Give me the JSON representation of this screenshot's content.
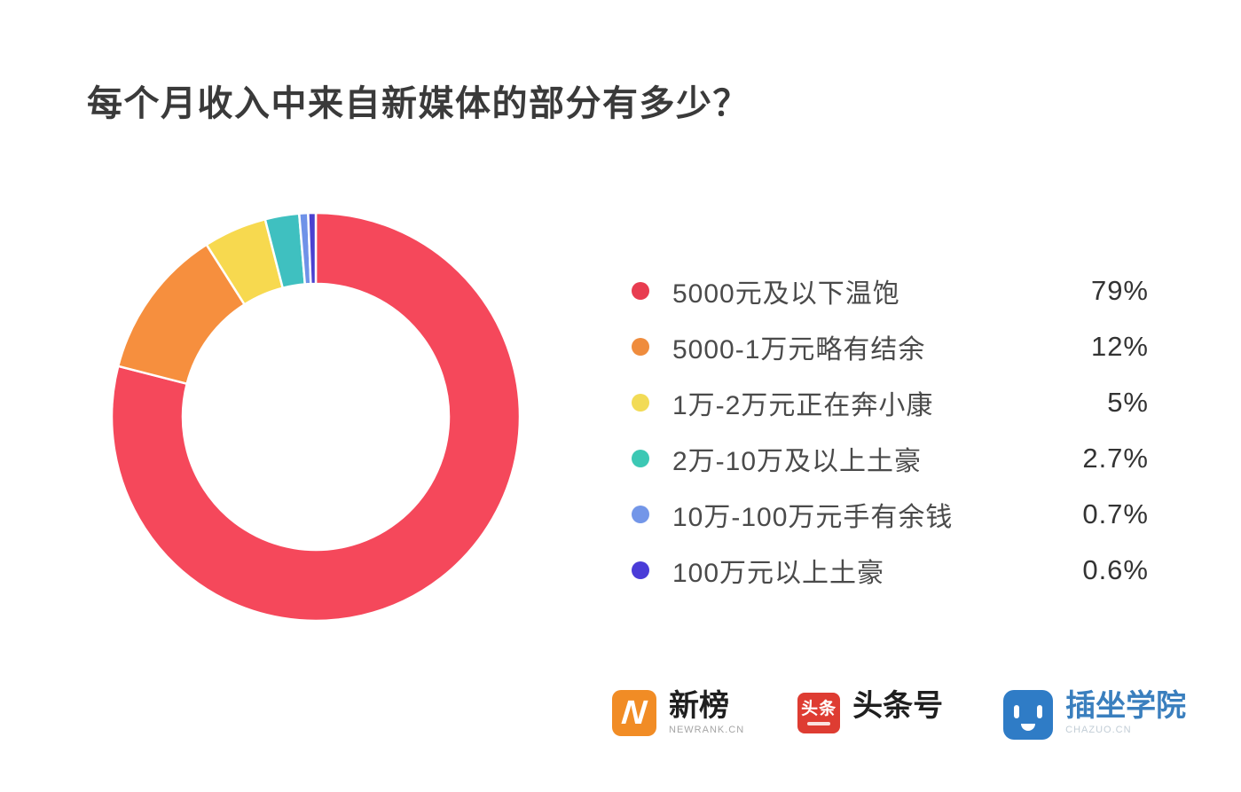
{
  "title": "每个月收入中来自新媒体的部分有多少？",
  "chart_data": {
    "type": "pie",
    "subtype": "donut",
    "title": "每个月收入中来自新媒体的部分有多少？",
    "legend_position": "right",
    "start_angle_deg": 0,
    "direction": "clockwise",
    "categories": [
      "5000元及以下温饱",
      "5000-1万元略有结余",
      "1万-2万元正在奔小康",
      "2万-10万及以上土豪",
      "10万-100万元手有余钱",
      "100万元以上土豪"
    ],
    "values": [
      79,
      12,
      5,
      2.7,
      0.7,
      0.6
    ],
    "unit": "%",
    "segments": [
      {
        "label": "5000元及以下温饱",
        "percent": 79,
        "value_label": "79%",
        "color": "#f5485b"
      },
      {
        "label": "5000-1万元略有结余",
        "percent": 12,
        "value_label": "12%",
        "color": "#f68f3e"
      },
      {
        "label": "1万-2万元正在奔小康",
        "percent": 5,
        "value_label": "5%",
        "color": "#f7d94f"
      },
      {
        "label": "2万-10万及以上土豪",
        "percent": 2.7,
        "value_label": "2.7%",
        "color": "#3fc0c0"
      },
      {
        "label": "10万-100万元手有余钱",
        "percent": 0.7,
        "value_label": "0.7%",
        "color": "#6f92e8"
      },
      {
        "label": "100万元以上土豪",
        "percent": 0.6,
        "value_label": "0.6%",
        "color": "#4b41d0"
      }
    ]
  },
  "legend": {
    "items": [
      {
        "label": "5000元及以下温饱",
        "value_label": "79%",
        "color": "#e83c50"
      },
      {
        "label": "5000-1万元略有结余",
        "value_label": "12%",
        "color": "#ef8c3d"
      },
      {
        "label": "1万-2万元正在奔小康",
        "value_label": "5%",
        "color": "#f2db56"
      },
      {
        "label": "2万-10万及以上土豪",
        "value_label": "2.7%",
        "color": "#3cc8b4"
      },
      {
        "label": "10万-100万元手有余钱",
        "value_label": "0.7%",
        "color": "#7396e8"
      },
      {
        "label": "100万元以上土豪",
        "value_label": "0.6%",
        "color": "#4a3cd8"
      }
    ]
  },
  "footer": {
    "brands": [
      {
        "name": "newrank",
        "title": "新榜",
        "subtitle": "NEWRANK.CN",
        "icon": "newrank-n-icon",
        "icon_bg": "#f18c25",
        "icon_glyph": "N"
      },
      {
        "name": "toutiao",
        "title": "头条号",
        "badge_text": "头条",
        "icon": "toutiao-badge-icon",
        "icon_bg": "#de3c32"
      },
      {
        "name": "chazuo",
        "title": "插坐学院",
        "subtitle": "CHAZUO.CN",
        "icon": "chazuo-face-icon",
        "icon_bg": "#2f7cc6"
      }
    ]
  }
}
